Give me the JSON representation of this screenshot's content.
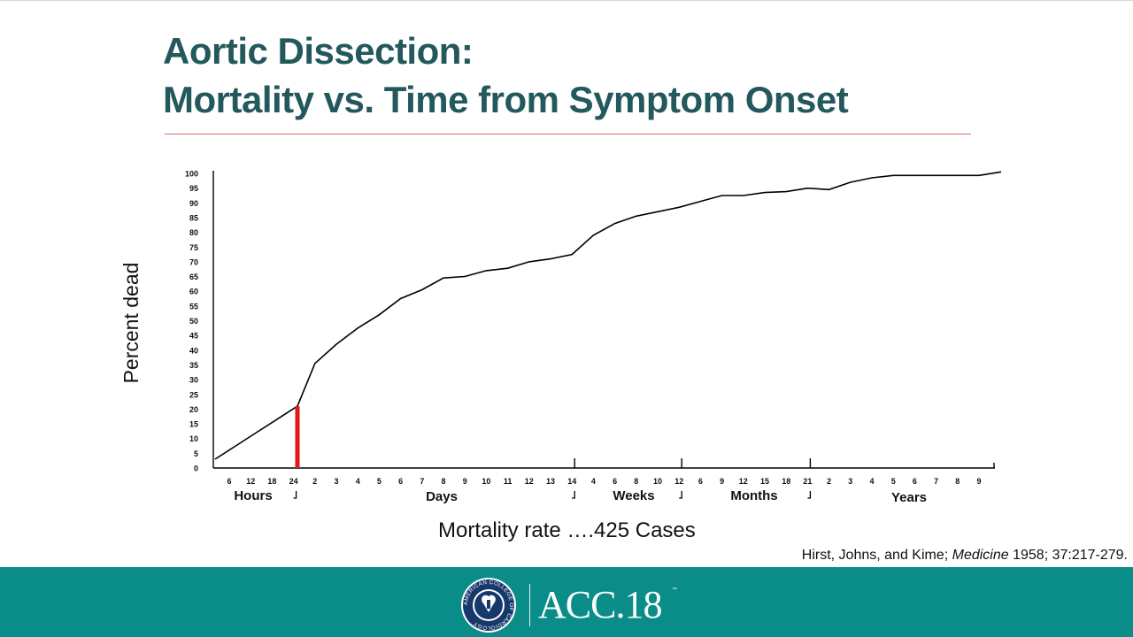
{
  "slide": {
    "title_line1": "Aortic Dissection:",
    "title_line2": "Mortality vs. Time from Symptom Onset",
    "subtitle": "Mortality rate ….425 Cases",
    "citation_prefix": "Hirst, Johns, and Kime; ",
    "citation_journal": "Medicine",
    "citation_suffix": " 1958; 37:217-279.",
    "brand_text": "ACC.18",
    "brand_tm": "™",
    "seal_text": "AMERICAN COLLEGE OF CARDIOLOGY"
  },
  "colors": {
    "title": "#23585d",
    "footer": "#0a8c89",
    "rule": "#d76a6a",
    "highlight": "#e0191b",
    "line": "#000000"
  },
  "chart_data": {
    "type": "line",
    "ylabel": "Percent dead",
    "xlabel": "",
    "ylim": [
      0,
      100
    ],
    "y_ticks": [
      0,
      5,
      10,
      15,
      20,
      25,
      30,
      35,
      40,
      45,
      50,
      55,
      60,
      65,
      70,
      75,
      80,
      85,
      90,
      95,
      100
    ],
    "x_ticks": [
      "6",
      "12",
      "18",
      "24",
      "2",
      "3",
      "4",
      "5",
      "6",
      "7",
      "8",
      "9",
      "10",
      "11",
      "12",
      "13",
      "14",
      "4",
      "6",
      "8",
      "10",
      "12",
      "6",
      "9",
      "12",
      "15",
      "18",
      "21",
      "2",
      "3",
      "4",
      "5",
      "6",
      "7",
      "8",
      "9"
    ],
    "segments": [
      {
        "label": "Hours",
        "start_tick": "0",
        "end_tick": "24"
      },
      {
        "label": "Days",
        "start_tick": "24",
        "end_tick": "14"
      },
      {
        "label": "Weeks",
        "start_tick": "14",
        "end_tick": "12"
      },
      {
        "label": "Months",
        "start_tick": "12",
        "end_tick": "21"
      },
      {
        "label": "Years",
        "start_tick": "21",
        "end_tick": "9"
      }
    ],
    "highlight": {
      "at_tick": "24 hours",
      "value": 21
    },
    "series": [
      {
        "x": [
          "0 h",
          "6 h",
          "12 h",
          "18 h",
          "24 h",
          "2 d",
          "3 d",
          "4 d",
          "5 d",
          "6 d",
          "7 d",
          "8 d",
          "9 d",
          "10 d",
          "11 d",
          "12 d",
          "13 d",
          "14 d",
          "4 w",
          "6 w",
          "8 w",
          "10 w",
          "12 w",
          "6 mo",
          "9 mo",
          "12 mo",
          "15 mo",
          "18 mo",
          "21 mo",
          "2 y",
          "3 y",
          "4 y",
          "5 y",
          "6 y",
          "7 y",
          "8 y",
          "9 y",
          "10 y"
        ],
        "values": [
          3,
          7.5,
          12,
          16.5,
          21,
          35.5,
          42,
          47.5,
          52,
          57.5,
          60.5,
          64.5,
          65,
          67,
          67.8,
          70,
          71,
          72.5,
          79,
          83,
          85.5,
          87,
          88.5,
          90.5,
          92.5,
          92.5,
          93.5,
          93.8,
          95,
          94.5,
          97,
          98.5,
          99.3,
          99.3,
          99.3,
          99.3,
          99.3,
          100.5
        ]
      }
    ]
  }
}
